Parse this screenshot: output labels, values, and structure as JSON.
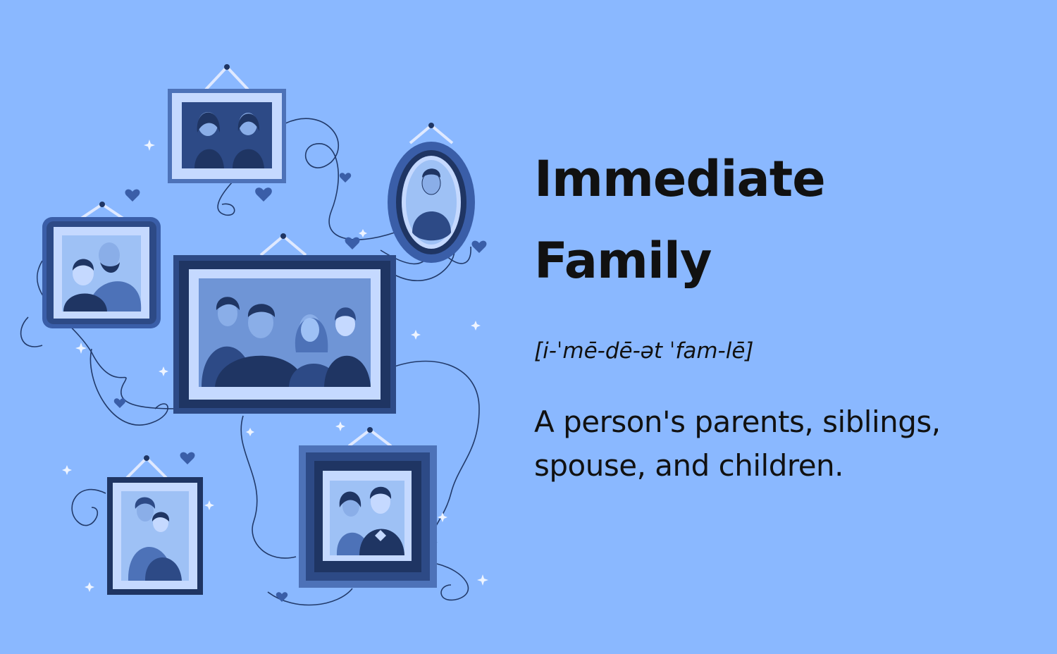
{
  "term": {
    "line1": "Immediate",
    "line2": "Family"
  },
  "pronunciation": "[i-ˈmē-dē-ət ˈfam-lē]",
  "definition": {
    "line1": "A person's parents, siblings,",
    "line2": "spouse, and children."
  },
  "colors": {
    "background": "#8ab8ff",
    "frame_dark": "#2d4a86",
    "frame_mid": "#4d72b8",
    "frame_light": "#c5d9ff",
    "photo_bg": "#9ec1f5",
    "figure_dark": "#1f3563",
    "text": "#111111"
  }
}
